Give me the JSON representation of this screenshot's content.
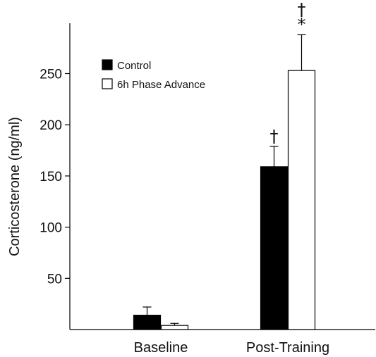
{
  "chart_data": {
    "type": "bar",
    "title": "",
    "xlabel": "",
    "ylabel": "Corticosterone (ng/ml)",
    "ylim": [
      0,
      300
    ],
    "yticks": [
      50,
      100,
      150,
      200,
      250
    ],
    "categories": [
      "Baseline",
      "Post-Training"
    ],
    "series": [
      {
        "name": "Control",
        "color": "#000000",
        "values": [
          14,
          159
        ],
        "errors": [
          8,
          20
        ],
        "annotations": [
          "",
          "†"
        ]
      },
      {
        "name": "6h Phase Advance",
        "color": "#ffffff",
        "values": [
          4,
          253
        ],
        "errors": [
          2,
          35
        ],
        "annotations": [
          "",
          "†\n*"
        ]
      }
    ],
    "legend_position": "top-left",
    "grid": false
  }
}
